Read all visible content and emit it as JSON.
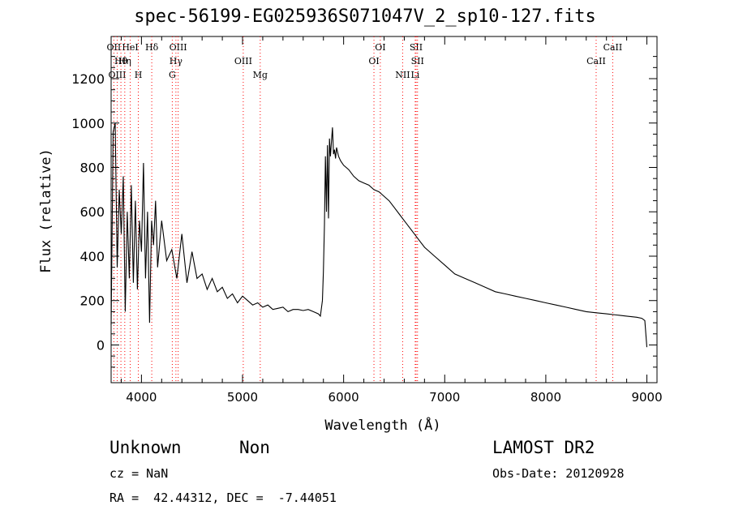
{
  "page": {
    "title": "spec-56199-EG025936S071047V_2_sp10-127.fits",
    "class_label": "Unknown",
    "subclass_label": "Non",
    "survey": "LAMOST DR2",
    "redshift_text": "cz = NaN",
    "obs_date_text": "Obs-Date: 20120928",
    "coords_text": "RA =  42.44312, DEC =  -7.44051"
  },
  "chart_data": {
    "type": "line",
    "title": "spec-56199-EG025936S071047V_2_sp10-127.fits",
    "xlabel": "Wavelength (Å)",
    "ylabel": "Flux (relative)",
    "xlim": [
      3700,
      9100
    ],
    "ylim": [
      -170,
      1390
    ],
    "xticks": [
      4000,
      5000,
      6000,
      7000,
      8000,
      9000
    ],
    "yticks": [
      0,
      200,
      400,
      600,
      800,
      1000,
      1200
    ],
    "grid": false,
    "line_color": "#000000",
    "marker_color": "#ff0000",
    "series": [
      {
        "x": [
          3700,
          3720,
          3740,
          3760,
          3780,
          3800,
          3820,
          3840,
          3860,
          3880,
          3900,
          3920,
          3940,
          3960,
          3980,
          4000,
          4020,
          4040,
          4060,
          4080,
          4100,
          4120,
          4140,
          4160,
          4200,
          4250,
          4300,
          4350,
          4400,
          4450,
          4500,
          4550,
          4600,
          4650,
          4700,
          4750,
          4800,
          4850,
          4900,
          4950,
          5000,
          5050,
          5100,
          5150,
          5200,
          5250,
          5300,
          5350,
          5400,
          5450,
          5500,
          5550,
          5600,
          5650,
          5700,
          5750,
          5770,
          5790,
          5800,
          5810,
          5820,
          5830,
          5840,
          5850,
          5860,
          5870,
          5880,
          5890,
          5900,
          5910,
          5920,
          5930,
          5950,
          5970,
          6000,
          6050,
          6100,
          6150,
          6200,
          6250,
          6300,
          6350,
          6400,
          6450,
          6500,
          6550,
          6600,
          6650,
          6700,
          6750,
          6800,
          6900,
          7000,
          7100,
          7200,
          7300,
          7400,
          7500,
          7600,
          7700,
          7800,
          7900,
          8000,
          8100,
          8200,
          8300,
          8400,
          8500,
          8600,
          8700,
          8800,
          8900,
          8950,
          8980,
          9000
        ],
        "y": [
          90,
          960,
          1000,
          350,
          700,
          500,
          760,
          150,
          600,
          300,
          720,
          280,
          650,
          250,
          560,
          420,
          820,
          300,
          600,
          100,
          560,
          450,
          650,
          350,
          560,
          380,
          430,
          300,
          500,
          280,
          420,
          300,
          320,
          250,
          300,
          240,
          260,
          210,
          230,
          190,
          220,
          200,
          180,
          190,
          170,
          180,
          160,
          165,
          170,
          150,
          160,
          160,
          155,
          160,
          150,
          140,
          130,
          200,
          330,
          540,
          850,
          600,
          900,
          570,
          930,
          850,
          920,
          980,
          860,
          880,
          840,
          890,
          850,
          830,
          810,
          790,
          760,
          740,
          730,
          720,
          700,
          690,
          670,
          650,
          620,
          590,
          560,
          530,
          500,
          470,
          440,
          400,
          360,
          320,
          300,
          280,
          260,
          240,
          230,
          220,
          210,
          200,
          190,
          180,
          170,
          160,
          150,
          145,
          140,
          135,
          130,
          125,
          120,
          110,
          -10
        ]
      }
    ],
    "line_markers": [
      {
        "label": "OII",
        "x": 3727
      },
      {
        "label": "Hθ",
        "x": 3797
      },
      {
        "label": "OIII",
        "x": 3760
      },
      {
        "label": "HeI",
        "x": 3889
      },
      {
        "label": "Hη",
        "x": 3835
      },
      {
        "label": "H",
        "x": 3969
      },
      {
        "label": "Hδ",
        "x": 4102
      },
      {
        "label": "Hγ",
        "x": 4341
      },
      {
        "label": "G",
        "x": 4305
      },
      {
        "label": "OIII",
        "x": 4363
      },
      {
        "label": "OIII",
        "x": 5007
      },
      {
        "label": "Mg",
        "x": 5175
      },
      {
        "label": "OI",
        "x": 6363
      },
      {
        "label": "OI",
        "x": 6300
      },
      {
        "label": "NII",
        "x": 6584
      },
      {
        "label": "SII",
        "x": 6717
      },
      {
        "label": "SII",
        "x": 6731
      },
      {
        "label": "Li",
        "x": 6708
      },
      {
        "label": "CaII",
        "x": 8662
      },
      {
        "label": "CaII",
        "x": 8498
      }
    ]
  }
}
